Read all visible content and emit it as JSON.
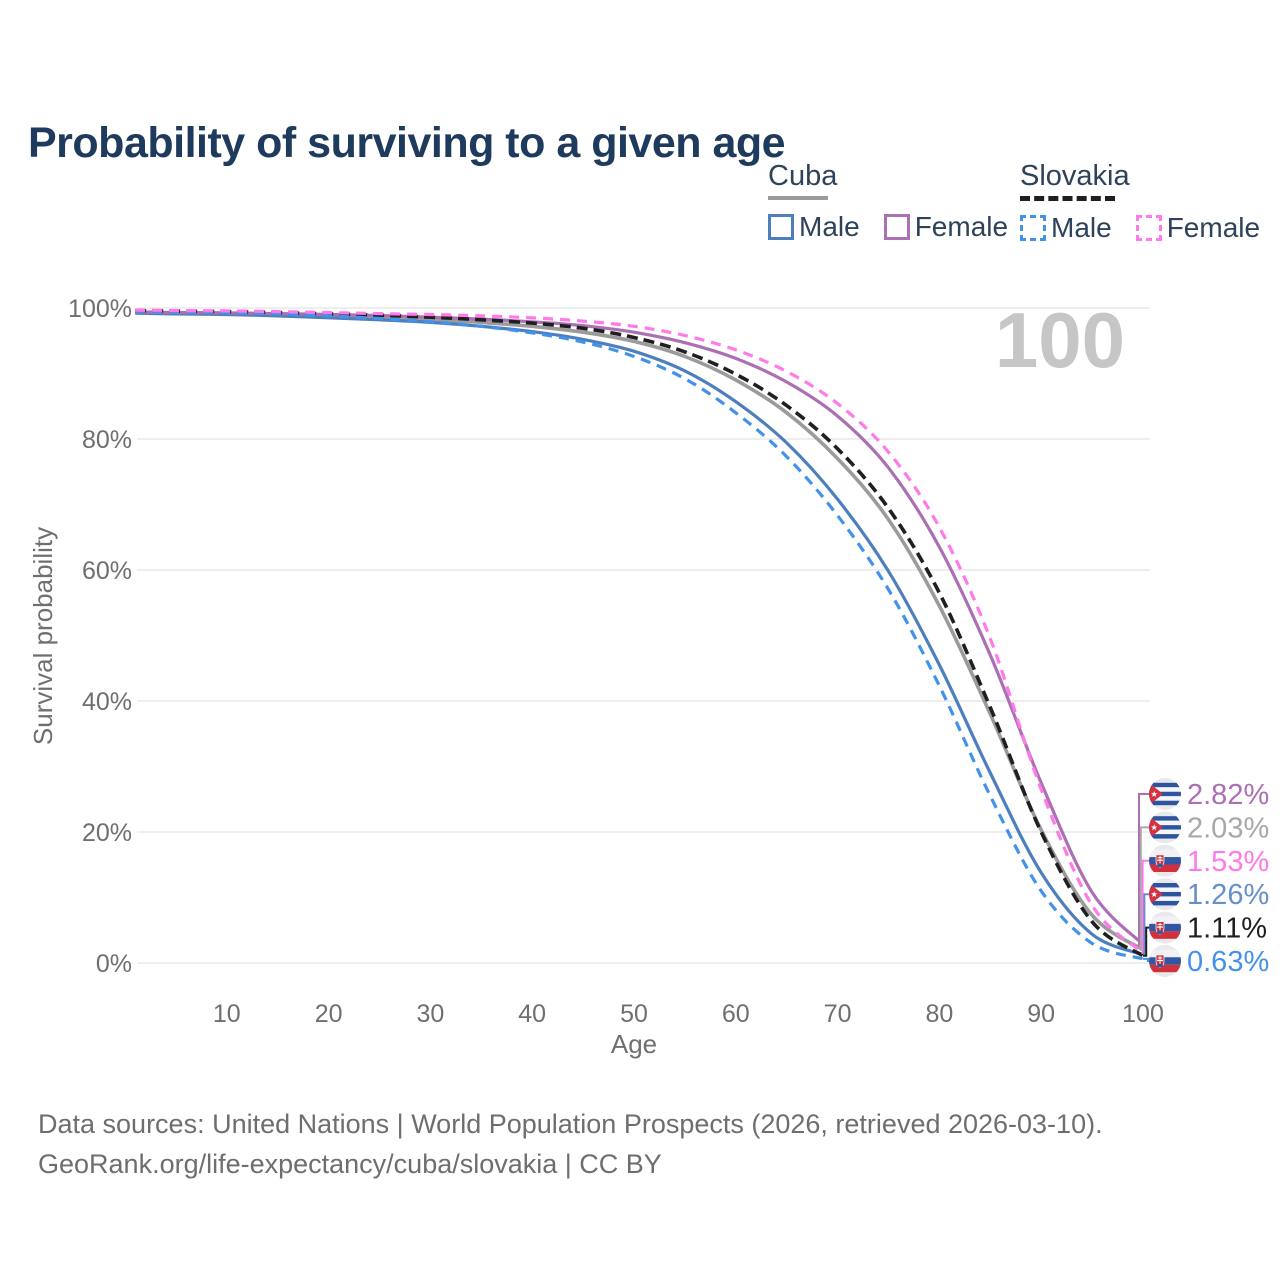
{
  "title": "Probability of surviving to a given age",
  "legend": {
    "groups": [
      {
        "name": "Cuba",
        "line_style": "solid",
        "underline_color": "#9b9b9b",
        "items": [
          {
            "label": "Male",
            "color": "#4d7fbe",
            "dashed": false
          },
          {
            "label": "Female",
            "color": "#ab6fb3",
            "dashed": false
          }
        ]
      },
      {
        "name": "Slovakia",
        "line_style": "dashed",
        "underline_color": "#1f1f1f",
        "items": [
          {
            "label": "Male",
            "color": "#4292ec",
            "dashed": true
          },
          {
            "label": "Female",
            "color": "#ff7ae8",
            "dashed": true
          }
        ]
      }
    ]
  },
  "watermark": "100",
  "chart_data": {
    "type": "line",
    "title": "Probability of surviving to a given age",
    "xlabel": "Age",
    "ylabel": "Survival probability",
    "xlim": [
      0,
      100
    ],
    "ylim": [
      0,
      100
    ],
    "grid": "horizontal",
    "x_ticks": [
      10,
      20,
      30,
      40,
      50,
      60,
      70,
      80,
      90,
      100
    ],
    "y_ticks": [
      {
        "value": 0,
        "label": "0%"
      },
      {
        "value": 20,
        "label": "20%"
      },
      {
        "value": 40,
        "label": "40%"
      },
      {
        "value": 60,
        "label": "60%"
      },
      {
        "value": 80,
        "label": "80%"
      },
      {
        "value": 100,
        "label": "100%"
      }
    ],
    "x": [
      1,
      5,
      10,
      15,
      20,
      25,
      30,
      35,
      40,
      45,
      50,
      55,
      60,
      65,
      70,
      75,
      80,
      85,
      90,
      95,
      100
    ],
    "series": [
      {
        "name": "Cuba Total",
        "country": "Cuba",
        "sex": "All",
        "color": "#9b9b9b",
        "line_style": "solid",
        "width": 3.6,
        "values": [
          99.3,
          99.2,
          99.1,
          98.95,
          98.75,
          98.5,
          98.2,
          97.8,
          97.2,
          96.3,
          94.9,
          92.6,
          89.0,
          84.0,
          77.0,
          67.7,
          54.5,
          38.0,
          20.3,
          7.3,
          2.03
        ]
      },
      {
        "name": "Cuba Male",
        "country": "Cuba",
        "sex": "Male",
        "color": "#4d7fbe",
        "line_style": "solid",
        "width": 3.2,
        "values": [
          99.2,
          99.1,
          99.0,
          98.8,
          98.5,
          98.2,
          97.8,
          97.2,
          96.4,
          95.2,
          93.4,
          90.4,
          85.7,
          79.4,
          70.8,
          59.8,
          45.5,
          29.0,
          13.8,
          4.4,
          1.26
        ]
      },
      {
        "name": "Cuba Female",
        "country": "Cuba",
        "sex": "Female",
        "color": "#ab6fb3",
        "line_style": "solid",
        "width": 3.2,
        "values": [
          99.4,
          99.32,
          99.25,
          99.15,
          99.0,
          98.85,
          98.6,
          98.3,
          97.9,
          97.3,
          96.3,
          94.7,
          92.3,
          88.7,
          83.5,
          75.6,
          63.5,
          47.0,
          27.5,
          10.8,
          2.82
        ]
      },
      {
        "name": "Slovakia Total",
        "country": "Slovakia",
        "sex": "All",
        "color": "#1f1f1f",
        "line_style": "dashed",
        "width": 3.6,
        "values": [
          99.6,
          99.52,
          99.45,
          99.3,
          99.1,
          98.9,
          98.6,
          98.2,
          97.7,
          96.9,
          95.5,
          93.3,
          89.9,
          85.1,
          78.5,
          69.4,
          56.5,
          39.0,
          20.0,
          6.3,
          1.11
        ]
      },
      {
        "name": "Slovakia Male",
        "country": "Slovakia",
        "sex": "Male",
        "color": "#4292ec",
        "line_style": "dashed",
        "width": 3.2,
        "values": [
          99.5,
          99.4,
          99.3,
          99.1,
          98.8,
          98.4,
          97.9,
          97.2,
          96.2,
          94.8,
          92.6,
          89.2,
          84.0,
          77.3,
          68.3,
          57.0,
          42.3,
          25.5,
          11.0,
          3.0,
          0.63
        ]
      },
      {
        "name": "Slovakia Female",
        "country": "Slovakia",
        "sex": "Female",
        "color": "#ff7ae8",
        "line_style": "dashed",
        "width": 3.2,
        "values": [
          99.7,
          99.62,
          99.55,
          99.45,
          99.3,
          99.15,
          99.0,
          98.8,
          98.5,
          98.0,
          97.2,
          95.8,
          93.6,
          90.3,
          85.4,
          78.0,
          66.5,
          49.5,
          26.5,
          8.8,
          1.53
        ]
      }
    ],
    "end_labels": [
      {
        "value": "2.82%",
        "pct": 2.82,
        "flag": "cuba",
        "color": "#ab6fb3"
      },
      {
        "value": "2.03%",
        "pct": 2.03,
        "flag": "cuba",
        "color": "#a8a8a8"
      },
      {
        "value": "1.53%",
        "pct": 1.53,
        "flag": "slovakia",
        "color": "#ff7ae8"
      },
      {
        "value": "1.26%",
        "pct": 1.26,
        "flag": "cuba",
        "color": "#6690c8"
      },
      {
        "value": "1.11%",
        "pct": 1.11,
        "flag": "slovakia",
        "color": "#1f1f1f"
      },
      {
        "value": "0.63%",
        "pct": 0.63,
        "flag": "slovakia",
        "color": "#4292ec"
      }
    ],
    "annotations": {
      "watermark": "100"
    }
  },
  "footer": {
    "line1": "Data sources: United Nations | World Population Prospects (2026, retrieved 2026-03-10).",
    "line2": "GeoRank.org/life-expectancy/cuba/slovakia | CC BY"
  }
}
